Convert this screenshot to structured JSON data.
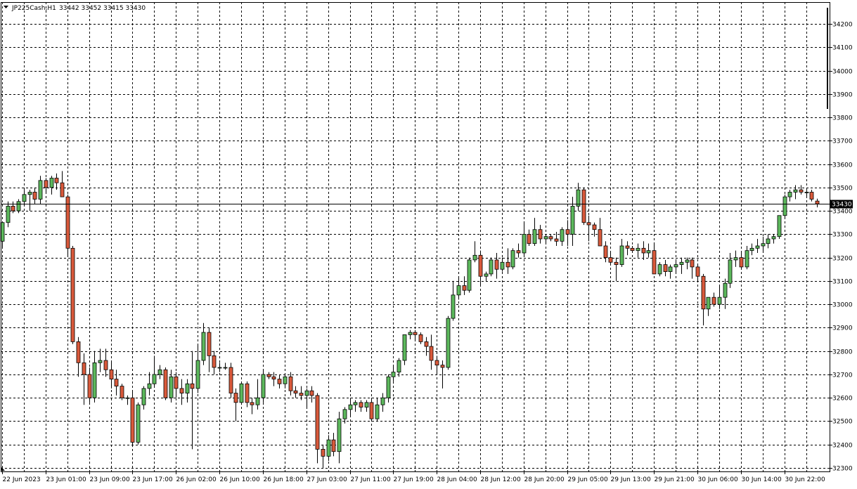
{
  "header": {
    "symbol": "JP225Cash,H1",
    "ohlc": "33442 33452 33415 33430"
  },
  "colors": {
    "bull": "#5cb85c",
    "bear": "#d9593b",
    "outline": "#000000",
    "grid": "#000000",
    "background": "#ffffff"
  },
  "chart_data": {
    "type": "candlestick",
    "symbol": "JP225Cash",
    "timeframe": "H1",
    "ylim": [
      32300,
      34200
    ],
    "y_ticks": [
      32300,
      32400,
      32500,
      32600,
      32700,
      32800,
      32900,
      33000,
      33100,
      33200,
      33300,
      33400,
      33500,
      33600,
      33700,
      33800,
      33900,
      34000,
      34100,
      34200
    ],
    "current_price": 33430,
    "current_price_label": "33430",
    "x_tick_labels": [
      "22 Jun 2023",
      "23 Jun 01:00",
      "23 Jun 09:00",
      "23 Jun 17:00",
      "26 Jun 02:00",
      "26 Jun 10:00",
      "26 Jun 18:00",
      "27 Jun 03:00",
      "27 Jun 11:00",
      "27 Jun 19:00",
      "28 Jun 04:00",
      "28 Jun 12:00",
      "28 Jun 20:00",
      "29 Jun 05:00",
      "29 Jun 13:00",
      "29 Jun 21:00",
      "30 Jun 06:00",
      "30 Jun 14:00",
      "30 Jun 22:00"
    ],
    "grid": true,
    "candles": [
      [
        33270,
        33350,
        33240,
        33350
      ],
      [
        33350,
        33440,
        33330,
        33420
      ],
      [
        33420,
        33440,
        33390,
        33400
      ],
      [
        33400,
        33450,
        33390,
        33440
      ],
      [
        33440,
        33490,
        33420,
        33470
      ],
      [
        33470,
        33490,
        33400,
        33480
      ],
      [
        33480,
        33500,
        33430,
        33450
      ],
      [
        33450,
        33550,
        33430,
        33530
      ],
      [
        33530,
        33540,
        33480,
        33500
      ],
      [
        33500,
        33550,
        33470,
        33540
      ],
      [
        33540,
        33560,
        33490,
        33520
      ],
      [
        33520,
        33570,
        33460,
        33460
      ],
      [
        33460,
        33470,
        33210,
        33240
      ],
      [
        33240,
        33250,
        32830,
        32840
      ],
      [
        32840,
        32860,
        32690,
        32750
      ],
      [
        32750,
        32790,
        32570,
        32700
      ],
      [
        32700,
        32730,
        32580,
        32600
      ],
      [
        32600,
        32800,
        32580,
        32750
      ],
      [
        32750,
        32810,
        32710,
        32760
      ],
      [
        32760,
        32810,
        32690,
        32720
      ],
      [
        32720,
        32760,
        32640,
        32680
      ],
      [
        32680,
        32720,
        32610,
        32650
      ],
      [
        32650,
        32660,
        32590,
        32600
      ],
      [
        32600,
        32610,
        32570,
        32600
      ],
      [
        32600,
        32630,
        32390,
        32410
      ],
      [
        32410,
        32580,
        32400,
        32570
      ],
      [
        32570,
        32650,
        32550,
        32640
      ],
      [
        32640,
        32710,
        32610,
        32660
      ],
      [
        32660,
        32780,
        32650,
        32700
      ],
      [
        32700,
        32740,
        32680,
        32720
      ],
      [
        32720,
        32730,
        32590,
        32600
      ],
      [
        32600,
        32720,
        32580,
        32690
      ],
      [
        32690,
        32710,
        32600,
        32640
      ],
      [
        32640,
        32680,
        32570,
        32620
      ],
      [
        32620,
        32680,
        32580,
        32660
      ],
      [
        32660,
        32800,
        32380,
        32640
      ],
      [
        32640,
        32830,
        32620,
        32760
      ],
      [
        32760,
        32920,
        32740,
        32880
      ],
      [
        32880,
        32900,
        32710,
        32780
      ],
      [
        32780,
        32800,
        32700,
        32730
      ],
      [
        32730,
        32750,
        32710,
        32730
      ],
      [
        32730,
        32750,
        32720,
        32730
      ],
      [
        32730,
        32750,
        32600,
        32620
      ],
      [
        32620,
        32640,
        32500,
        32580
      ],
      [
        32580,
        32670,
        32570,
        32660
      ],
      [
        32660,
        32670,
        32560,
        32580
      ],
      [
        32580,
        32600,
        32530,
        32570
      ],
      [
        32570,
        32680,
        32550,
        32600
      ],
      [
        32600,
        32720,
        32580,
        32700
      ],
      [
        32700,
        32710,
        32680,
        32690
      ],
      [
        32690,
        32710,
        32650,
        32680
      ],
      [
        32680,
        32700,
        32640,
        32660
      ],
      [
        32660,
        32700,
        32640,
        32690
      ],
      [
        32690,
        32710,
        32610,
        32630
      ],
      [
        32630,
        32650,
        32600,
        32620
      ],
      [
        32620,
        32650,
        32590,
        32610
      ],
      [
        32610,
        32640,
        32560,
        32630
      ],
      [
        32630,
        32650,
        32580,
        32610
      ],
      [
        32610,
        32620,
        32320,
        32380
      ],
      [
        32380,
        32400,
        32300,
        32350
      ],
      [
        32350,
        32440,
        32330,
        32420
      ],
      [
        32420,
        32450,
        32350,
        32370
      ],
      [
        32370,
        32540,
        32320,
        32510
      ],
      [
        32510,
        32560,
        32490,
        32550
      ],
      [
        32550,
        32600,
        32520,
        32570
      ],
      [
        32570,
        32590,
        32540,
        32580
      ],
      [
        32580,
        32590,
        32540,
        32560
      ],
      [
        32560,
        32590,
        32540,
        32580
      ],
      [
        32580,
        32600,
        32500,
        32510
      ],
      [
        32510,
        32600,
        32500,
        32570
      ],
      [
        32570,
        32620,
        32540,
        32600
      ],
      [
        32600,
        32700,
        32580,
        32690
      ],
      [
        32690,
        32740,
        32670,
        32710
      ],
      [
        32710,
        32770,
        32690,
        32760
      ],
      [
        32760,
        32870,
        32740,
        32870
      ],
      [
        32870,
        32890,
        32850,
        32880
      ],
      [
        32880,
        32890,
        32850,
        32870
      ],
      [
        32870,
        32880,
        32830,
        32840
      ],
      [
        32840,
        32860,
        32780,
        32820
      ],
      [
        32820,
        32870,
        32720,
        32760
      ],
      [
        32760,
        32780,
        32700,
        32740
      ],
      [
        32740,
        32760,
        32640,
        32730
      ],
      [
        32730,
        32950,
        32720,
        32940
      ],
      [
        32940,
        33100,
        32930,
        33040
      ],
      [
        33040,
        33120,
        33020,
        33080
      ],
      [
        33080,
        33120,
        33040,
        33060
      ],
      [
        33060,
        33200,
        33050,
        33190
      ],
      [
        33190,
        33270,
        33180,
        33210
      ],
      [
        33210,
        33230,
        33080,
        33120
      ],
      [
        33120,
        33140,
        33100,
        33130
      ],
      [
        33130,
        33200,
        33120,
        33190
      ],
      [
        33190,
        33220,
        33110,
        33150
      ],
      [
        33150,
        33200,
        33140,
        33180
      ],
      [
        33180,
        33240,
        33130,
        33160
      ],
      [
        33160,
        33240,
        33150,
        33230
      ],
      [
        33230,
        33260,
        33200,
        33220
      ],
      [
        33220,
        33350,
        33210,
        33300
      ],
      [
        33300,
        33320,
        33250,
        33260
      ],
      [
        33260,
        33370,
        33250,
        33320
      ],
      [
        33320,
        33340,
        33260,
        33280
      ],
      [
        33280,
        33300,
        33260,
        33290
      ],
      [
        33290,
        33300,
        33270,
        33280
      ],
      [
        33280,
        33310,
        33250,
        33270
      ],
      [
        33270,
        33330,
        33250,
        33320
      ],
      [
        33320,
        33360,
        33250,
        33300
      ],
      [
        33300,
        33460,
        33250,
        33420
      ],
      [
        33420,
        33520,
        33400,
        33490
      ],
      [
        33490,
        33500,
        33340,
        33350
      ],
      [
        33350,
        33380,
        33270,
        33340
      ],
      [
        33340,
        33350,
        33290,
        33320
      ],
      [
        33320,
        33370,
        33250,
        33250
      ],
      [
        33250,
        33270,
        33180,
        33200
      ],
      [
        33200,
        33220,
        33170,
        33180
      ],
      [
        33180,
        33200,
        33100,
        33170
      ],
      [
        33170,
        33280,
        33160,
        33250
      ],
      [
        33250,
        33270,
        33210,
        33240
      ],
      [
        33240,
        33250,
        33220,
        33230
      ],
      [
        33230,
        33260,
        33200,
        33240
      ],
      [
        33240,
        33270,
        33190,
        33220
      ],
      [
        33220,
        33260,
        33200,
        33230
      ],
      [
        33230,
        33260,
        33130,
        33130
      ],
      [
        33130,
        33180,
        33120,
        33170
      ],
      [
        33170,
        33190,
        33120,
        33140
      ],
      [
        33140,
        33170,
        33110,
        33160
      ],
      [
        33160,
        33190,
        33130,
        33170
      ],
      [
        33170,
        33200,
        33130,
        33180
      ],
      [
        33180,
        33200,
        33150,
        33190
      ],
      [
        33190,
        33200,
        33110,
        33160
      ],
      [
        33160,
        33170,
        33100,
        33120
      ],
      [
        33120,
        33130,
        32910,
        32980
      ],
      [
        32980,
        33020,
        32950,
        33030
      ],
      [
        33030,
        33050,
        32990,
        33000
      ],
      [
        33000,
        33080,
        32980,
        33030
      ],
      [
        33030,
        33110,
        32980,
        33090
      ],
      [
        33090,
        33220,
        33070,
        33190
      ],
      [
        33190,
        33230,
        33160,
        33200
      ],
      [
        33200,
        33220,
        33150,
        33160
      ],
      [
        33160,
        33250,
        33150,
        33230
      ],
      [
        33230,
        33260,
        33210,
        33240
      ],
      [
        33240,
        33280,
        33220,
        33250
      ],
      [
        33250,
        33290,
        33220,
        33260
      ],
      [
        33260,
        33300,
        33240,
        33280
      ],
      [
        33280,
        33300,
        33260,
        33290
      ],
      [
        33290,
        33380,
        33280,
        33380
      ],
      [
        33380,
        33470,
        33370,
        33460
      ],
      [
        33460,
        33490,
        33440,
        33480
      ],
      [
        33480,
        33510,
        33450,
        33490
      ],
      [
        33490,
        33510,
        33470,
        33480
      ],
      [
        33480,
        33490,
        33460,
        33480
      ],
      [
        33480,
        33490,
        33440,
        33450
      ],
      [
        33442,
        33452,
        33415,
        33430
      ]
    ]
  }
}
